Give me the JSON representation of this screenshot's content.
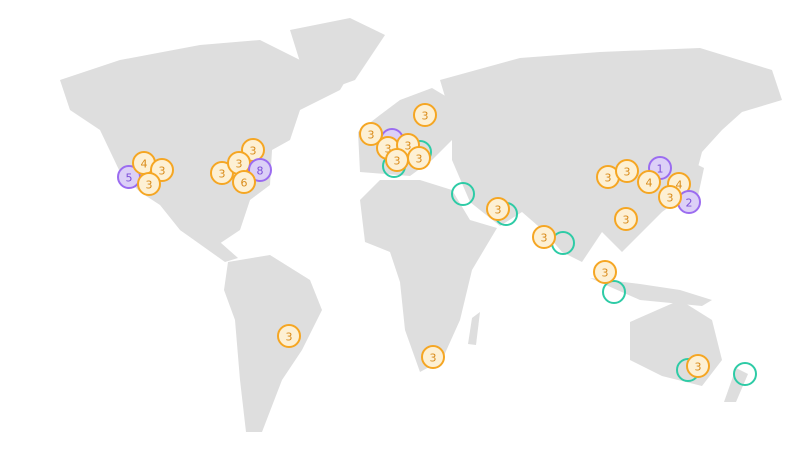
{
  "markers": [
    {
      "label": "5"
    },
    {
      "label": "4"
    },
    {
      "label": "3"
    },
    {
      "label": "3"
    },
    {
      "label": "3"
    },
    {
      "label": "3"
    },
    {
      "label": "3"
    },
    {
      "label": "8"
    },
    {
      "label": "6"
    },
    {
      "label": "3"
    },
    {
      "label": "3"
    },
    {
      "label": "3"
    },
    {
      "label": "3"
    },
    {
      "label": "3"
    },
    {
      "label": "3"
    },
    {
      "label": "3"
    },
    {
      "label": "3"
    },
    {
      "label": "3"
    },
    {
      "label": "3"
    },
    {
      "label": "3"
    },
    {
      "label": "3"
    },
    {
      "label": "3"
    },
    {
      "label": "1"
    },
    {
      "label": "4"
    },
    {
      "label": "4"
    },
    {
      "label": "2"
    },
    {
      "label": "3"
    },
    {
      "label": "3"
    },
    {
      "label": "3"
    }
  ]
}
